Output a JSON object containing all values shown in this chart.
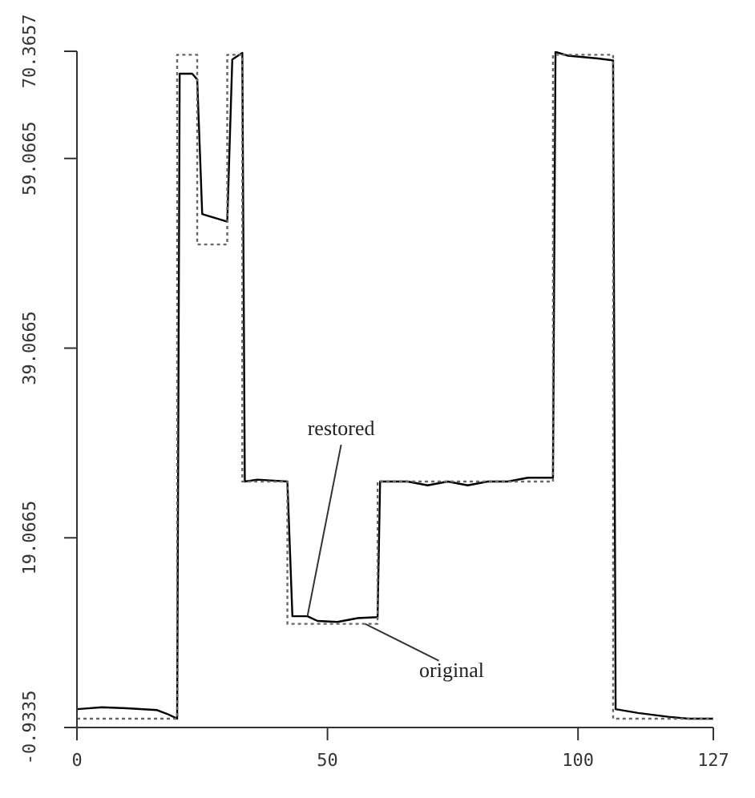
{
  "chart_data": {
    "type": "line",
    "xlim": [
      0,
      127
    ],
    "xticks": [
      0,
      50,
      100,
      127
    ],
    "ylim": [
      -0.9335,
      70.3657
    ],
    "yticks": [
      -0.9335,
      19.0665,
      39.0665,
      59.0665,
      70.3657
    ],
    "grid": false,
    "legend": false,
    "marker": "none",
    "series": [
      {
        "color": "#000000",
        "line_style": "solid",
        "x": [
          0,
          5,
          10,
          16,
          18,
          20,
          20.5,
          23,
          24,
          25,
          30,
          31,
          33,
          33.5,
          36,
          42,
          43,
          46,
          48,
          52,
          56,
          60,
          60.5,
          66,
          70,
          74,
          78,
          82,
          86,
          90,
          95,
          95.5,
          98,
          104,
          107,
          107.5,
          112,
          118,
          122,
          127
        ],
        "values": [
          1,
          1.2,
          1.1,
          0.9,
          0.5,
          0,
          68,
          68,
          67.4,
          53.2,
          52.4,
          69.5,
          70.2,
          25,
          25.2,
          25,
          10.8,
          10.8,
          10.3,
          10.2,
          10.6,
          10.7,
          25,
          25,
          24.6,
          25,
          24.6,
          25,
          25,
          25.4,
          25.4,
          70.3,
          69.9,
          69.6,
          69.4,
          1,
          0.6,
          0.2,
          0,
          0
        ]
      },
      {
        "color": "#666666",
        "line_style": "dotted",
        "x": [
          0,
          20,
          20,
          24,
          24,
          30,
          30,
          33,
          33,
          42,
          42,
          60,
          60,
          95,
          95,
          107,
          107,
          127
        ],
        "values": [
          0,
          0,
          70,
          70,
          50,
          50,
          70,
          70,
          25,
          25,
          10,
          10,
          25,
          25,
          70,
          70,
          0,
          0
        ]
      }
    ],
    "annotations": [
      {
        "text": "restored",
        "x": 46,
        "y": 10.8
      },
      {
        "text": "original",
        "x": 57.5,
        "y": 10
      }
    ]
  }
}
